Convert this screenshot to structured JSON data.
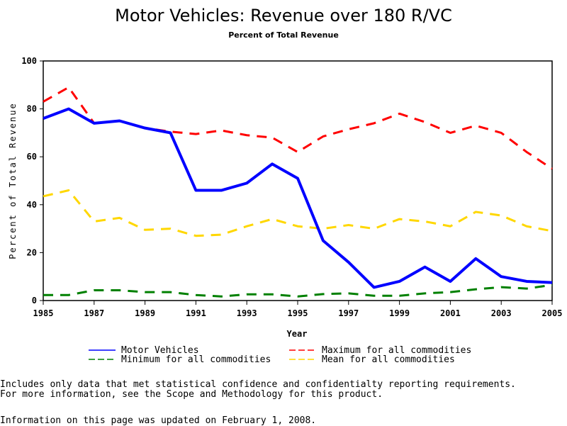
{
  "chart_data": {
    "type": "line",
    "title": "Motor Vehicles: Revenue over 180 R/VC",
    "subtitle": "Percent of Total Revenue",
    "xlabel": "Year",
    "ylabel": "Percent of Total Revenue",
    "xlim": [
      1985,
      2005
    ],
    "ylim": [
      0,
      100
    ],
    "x_ticks": [
      "1985",
      "1987",
      "1989",
      "1991",
      "1993",
      "1995",
      "1997",
      "1999",
      "2001",
      "2003",
      "2005"
    ],
    "y_ticks": [
      "0",
      "20",
      "40",
      "60",
      "80",
      "100"
    ],
    "grid": false,
    "legend_position": "bottom",
    "x": [
      1985,
      1986,
      1987,
      1988,
      1989,
      1990,
      1991,
      1992,
      1993,
      1994,
      1995,
      1996,
      1997,
      1998,
      1999,
      2000,
      2001,
      2002,
      2003,
      2004,
      2005
    ],
    "series": [
      {
        "name": "Motor Vehicles",
        "color": "#0000ff",
        "style": "solid",
        "values": [
          76,
          80,
          74,
          75,
          72,
          70,
          46,
          46,
          49,
          57,
          51,
          25,
          16,
          5.5,
          8,
          14,
          8,
          17.5,
          10,
          8,
          7.5
        ]
      },
      {
        "name": "Maximum for all commodities",
        "color": "#ff0000",
        "style": "dashed",
        "values": [
          83,
          89,
          74,
          75,
          72,
          70.5,
          69.5,
          71,
          69,
          68,
          62,
          68.5,
          71.5,
          74,
          78,
          74.5,
          70,
          73,
          70,
          62,
          55
        ]
      },
      {
        "name": "Minimum for all commodities",
        "color": "#008000",
        "style": "dashed",
        "values": [
          2.3,
          2.3,
          4.3,
          4.3,
          3.5,
          3.5,
          2.3,
          1.7,
          2.6,
          2.6,
          1.7,
          2.7,
          3,
          2,
          2,
          3,
          3.5,
          4.7,
          5.6,
          5,
          6.5
        ]
      },
      {
        "name": "Mean for all commodities",
        "color": "#ffd700",
        "style": "dashed",
        "values": [
          43.5,
          46,
          33,
          34.5,
          29.5,
          30,
          27,
          27.5,
          31,
          34,
          31,
          30,
          31.5,
          30,
          34,
          33,
          31,
          37,
          35.5,
          31,
          29
        ]
      }
    ]
  },
  "footnotes": {
    "line1": "Includes only data that met statistical confidence and confidentialty reporting requirements.",
    "line2": "For more information, see the Scope and Methodology for this product.",
    "updated": "Information on this page was updated on February 1, 2008."
  }
}
